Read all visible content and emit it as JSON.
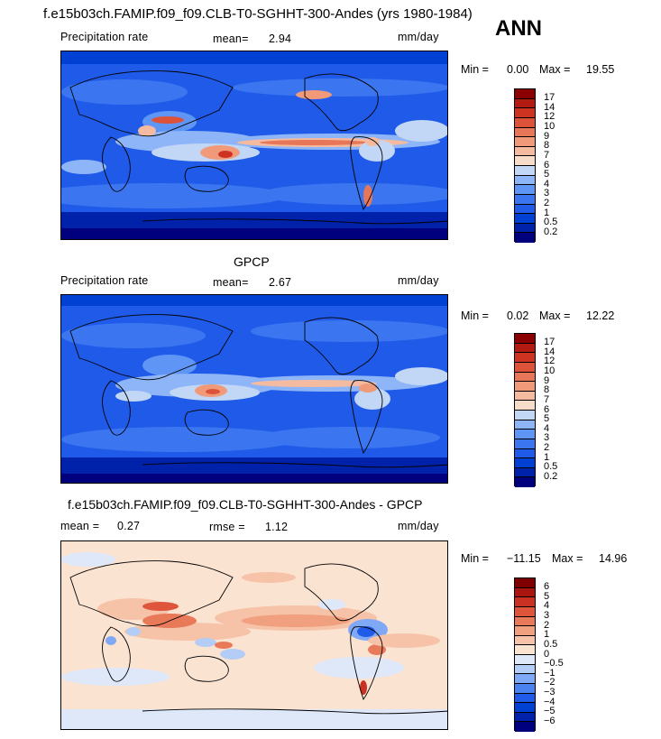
{
  "header": {
    "title": "f.e15b03ch.FAMIP.f09_f09.CLB-T0-SGHHT-300-Andes (yrs 1980-1984)",
    "season": "ANN"
  },
  "colors": {
    "precip_scale": [
      "#00007f",
      "#0022aa",
      "#0040d2",
      "#1f5be8",
      "#3b76f0",
      "#5f96f6",
      "#8eb5f7",
      "#c2d6f6",
      "#f7ddc9",
      "#f5bba0",
      "#f09a7a",
      "#e87658",
      "#dd533a",
      "#ce3322",
      "#b21a12",
      "#8b0000"
    ],
    "diff_scale": [
      "#00007f",
      "#0022aa",
      "#0040d2",
      "#1f5be8",
      "#4a82f0",
      "#7fa8f6",
      "#b3cdf6",
      "#dfe8f8",
      "#fbe3d2",
      "#f6c3a8",
      "#f1a07f",
      "#e87a5a",
      "#de553c",
      "#c93222",
      "#a8160f",
      "#7f0000"
    ]
  },
  "panels": [
    {
      "title": "",
      "field_label": "Precipitation rate",
      "mean_label": "mean=",
      "mean_value": "2.94",
      "units": "mm/day",
      "min_label": "Min =",
      "min_value": "0.00",
      "max_label": "Max =",
      "max_value": "19.55",
      "colorbar_ticks": [
        "17",
        "14",
        "12",
        "10",
        "9",
        "8",
        "7",
        "6",
        "5",
        "4",
        "3",
        "2",
        "1",
        "0.5",
        "0.2"
      ]
    },
    {
      "title": "GPCP",
      "field_label": "Precipitation rate",
      "mean_label": "mean=",
      "mean_value": "2.67",
      "units": "mm/day",
      "min_label": "Min =",
      "min_value": "0.02",
      "max_label": "Max =",
      "max_value": "12.22",
      "colorbar_ticks": [
        "17",
        "14",
        "12",
        "10",
        "9",
        "8",
        "7",
        "6",
        "5",
        "4",
        "3",
        "2",
        "1",
        "0.5",
        "0.2"
      ]
    },
    {
      "title": "f.e15b03ch.FAMIP.f09_f09.CLB-T0-SGHHT-300-Andes - GPCP",
      "field_label": "",
      "mean_label": "mean =",
      "mean_value": "0.27",
      "rmse_label": "rmse =",
      "rmse_value": "1.12",
      "units": "mm/day",
      "min_label": "Min =",
      "min_value": "−11.15",
      "max_label": "Max =",
      "max_value": "14.96",
      "colorbar_ticks": [
        "6",
        "5",
        "4",
        "3",
        "2",
        "1",
        "0.5",
        "0",
        "−0.5",
        "−1",
        "−2",
        "−3",
        "−4",
        "−5",
        "−6"
      ]
    }
  ]
}
